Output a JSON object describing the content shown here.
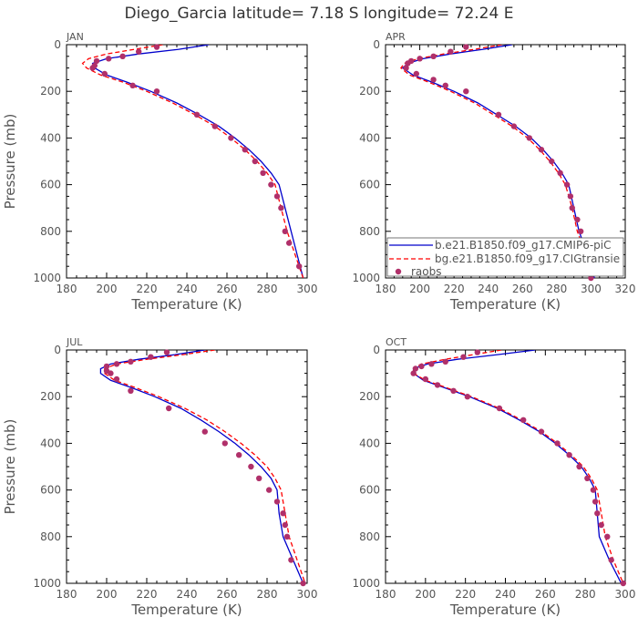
{
  "title": "Diego_Garcia  latitude= 7.18 S longitude= 72.24 E",
  "legend": {
    "entries": [
      {
        "label": "b.e21.B1850.f09_g17.CMIP6-piC",
        "color": "#0000cc",
        "style": "solid"
      },
      {
        "label": "bg.e21.B1850.f09_g17.CIGtransie",
        "color": "#ff0000",
        "style": "dashed"
      },
      {
        "label": "raobs",
        "color": "#b0306a",
        "style": "dot"
      }
    ]
  },
  "chart_data": [
    {
      "type": "line",
      "panel": "JAN",
      "xlabel": "Temperature (K)",
      "ylabel": "Pressure (mb)",
      "xlim": [
        180,
        300
      ],
      "ylim": [
        1000,
        0
      ],
      "xticks": [
        180,
        200,
        220,
        240,
        260,
        280,
        300
      ],
      "yticks": [
        0,
        200,
        400,
        600,
        800,
        1000
      ],
      "series": [
        {
          "name": "b.e21.B1850.f09_g17.CMIP6-piC",
          "color": "#0000cc",
          "style": "solid",
          "x": [
            251,
            236,
            216,
            200,
            193,
            194,
            200,
            210,
            222,
            235,
            246,
            256,
            264,
            271,
            277,
            282,
            286,
            289,
            292,
            295,
            298
          ],
          "y": [
            0,
            20,
            40,
            60,
            80,
            100,
            130,
            160,
            200,
            250,
            300,
            350,
            400,
            450,
            500,
            550,
            600,
            700,
            800,
            900,
            1000
          ]
        },
        {
          "name": "bg.e21.B1850.f09_g17.CIGtransie",
          "color": "#ff0000",
          "style": "dashed",
          "x": [
            228,
            214,
            200,
            191,
            188,
            190,
            197,
            208,
            220,
            233,
            244,
            254,
            262,
            269,
            275,
            280,
            284,
            287,
            290,
            294,
            298
          ],
          "y": [
            0,
            20,
            40,
            60,
            80,
            100,
            130,
            160,
            200,
            250,
            300,
            350,
            400,
            450,
            500,
            550,
            600,
            700,
            800,
            900,
            1000
          ]
        },
        {
          "name": "raobs",
          "color": "#b0306a",
          "style": "dot",
          "x": [
            225,
            216,
            208,
            201,
            195,
            194,
            193,
            199,
            213,
            225,
            245,
            254,
            262,
            269,
            274,
            278,
            282,
            285,
            287,
            289,
            291,
            296
          ],
          "y": [
            10,
            30,
            50,
            60,
            70,
            90,
            100,
            125,
            175,
            200,
            300,
            350,
            400,
            450,
            500,
            550,
            600,
            650,
            700,
            800,
            850,
            950
          ]
        }
      ]
    },
    {
      "type": "line",
      "panel": "APR",
      "xlabel": "Temperature (K)",
      "ylabel": "Pressure (mb)",
      "xlim": [
        180,
        320
      ],
      "ylim": [
        1000,
        0
      ],
      "xticks": [
        180,
        200,
        220,
        240,
        260,
        280,
        300,
        320
      ],
      "yticks": [
        0,
        200,
        400,
        600,
        800,
        1000
      ],
      "series": [
        {
          "name": "b.e21.B1850.f09_g17.CMIP6-piC",
          "color": "#0000cc",
          "style": "solid",
          "x": [
            254,
            237,
            218,
            202,
            193,
            190,
            196,
            207,
            220,
            234,
            245,
            256,
            265,
            272,
            278,
            283,
            287,
            290,
            293,
            298,
            302
          ],
          "y": [
            0,
            20,
            40,
            60,
            80,
            100,
            130,
            160,
            200,
            250,
            300,
            350,
            400,
            450,
            500,
            550,
            600,
            700,
            800,
            900,
            1000
          ]
        },
        {
          "name": "bg.e21.B1850.f09_g17.CIGtransie",
          "color": "#ff0000",
          "style": "dashed",
          "x": [
            248,
            232,
            214,
            199,
            191,
            189,
            194,
            205,
            218,
            232,
            243,
            254,
            263,
            270,
            276,
            281,
            285,
            289,
            292,
            297,
            301
          ],
          "y": [
            0,
            20,
            40,
            60,
            80,
            100,
            130,
            160,
            200,
            250,
            300,
            350,
            400,
            450,
            500,
            550,
            600,
            700,
            800,
            900,
            1000
          ]
        },
        {
          "name": "raobs",
          "color": "#b0306a",
          "style": "dot",
          "x": [
            227,
            218,
            208,
            200,
            195,
            193,
            192,
            198,
            208,
            215,
            227,
            246,
            255,
            264,
            271,
            277,
            282,
            286,
            288,
            289,
            292,
            294,
            296,
            298,
            300
          ],
          "y": [
            10,
            30,
            50,
            60,
            70,
            80,
            100,
            125,
            150,
            175,
            200,
            300,
            350,
            400,
            450,
            500,
            550,
            600,
            650,
            700,
            750,
            800,
            850,
            900,
            1000
          ]
        }
      ]
    },
    {
      "type": "line",
      "panel": "JUL",
      "xlabel": "Temperature (K)",
      "ylabel": "Pressure (mb)",
      "xlim": [
        180,
        300
      ],
      "ylim": [
        1000,
        0
      ],
      "xticks": [
        180,
        200,
        220,
        240,
        260,
        280,
        300
      ],
      "yticks": [
        0,
        200,
        400,
        600,
        800,
        1000
      ],
      "series": [
        {
          "name": "b.e21.B1850.f09_g17.CMIP6-piC",
          "color": "#0000cc",
          "style": "solid",
          "x": [
            249,
            234,
            216,
            202,
            197,
            197,
            202,
            212,
            224,
            237,
            247,
            256,
            264,
            271,
            277,
            282,
            285,
            286,
            288,
            293,
            298
          ],
          "y": [
            0,
            20,
            40,
            60,
            80,
            100,
            130,
            160,
            200,
            250,
            300,
            350,
            400,
            450,
            500,
            550,
            600,
            700,
            800,
            900,
            1000
          ]
        },
        {
          "name": "bg.e21.B1850.f09_g17.CIGtransie",
          "color": "#ff0000",
          "style": "dashed",
          "x": [
            254,
            238,
            220,
            205,
            199,
            199,
            204,
            214,
            226,
            239,
            250,
            259,
            267,
            274,
            280,
            284,
            287,
            289,
            291,
            295,
            299
          ],
          "y": [
            0,
            20,
            40,
            60,
            80,
            100,
            130,
            160,
            200,
            250,
            300,
            350,
            400,
            450,
            500,
            550,
            600,
            700,
            800,
            900,
            1000
          ]
        },
        {
          "name": "raobs",
          "color": "#b0306a",
          "style": "dot",
          "x": [
            230,
            222,
            212,
            205,
            200,
            200,
            202,
            205,
            212,
            231,
            249,
            259,
            266,
            272,
            276,
            281,
            285,
            288,
            289,
            290,
            292,
            298
          ],
          "y": [
            10,
            30,
            50,
            60,
            70,
            90,
            100,
            125,
            175,
            250,
            350,
            400,
            450,
            500,
            550,
            600,
            650,
            700,
            750,
            800,
            900,
            1000
          ]
        }
      ]
    },
    {
      "type": "line",
      "panel": "OCT",
      "xlabel": "Temperature (K)",
      "ylabel": "Pressure (mb)",
      "xlim": [
        180,
        300
      ],
      "ylim": [
        1000,
        0
      ],
      "xticks": [
        180,
        200,
        220,
        240,
        260,
        280,
        300
      ],
      "yticks": [
        0,
        200,
        400,
        600,
        800,
        1000
      ],
      "series": [
        {
          "name": "b.e21.B1850.f09_g17.CMIP6-piC",
          "color": "#0000cc",
          "style": "solid",
          "x": [
            255,
            236,
            216,
            201,
            194,
            194,
            199,
            209,
            222,
            236,
            247,
            257,
            265,
            272,
            278,
            282,
            285,
            286,
            287,
            292,
            298
          ],
          "y": [
            0,
            20,
            40,
            60,
            80,
            100,
            130,
            160,
            200,
            250,
            300,
            350,
            400,
            450,
            500,
            550,
            600,
            700,
            800,
            900,
            1000
          ]
        },
        {
          "name": "bg.e21.B1850.f09_g17.CIGtransie",
          "color": "#ff0000",
          "style": "dashed",
          "x": [
            238,
            224,
            210,
            198,
            194,
            194,
            200,
            210,
            223,
            237,
            248,
            258,
            266,
            273,
            279,
            283,
            286,
            288,
            290,
            294,
            299
          ],
          "y": [
            0,
            20,
            40,
            60,
            80,
            100,
            130,
            160,
            200,
            250,
            300,
            350,
            400,
            450,
            500,
            550,
            600,
            700,
            800,
            900,
            1000
          ]
        },
        {
          "name": "raobs",
          "color": "#b0306a",
          "style": "dot",
          "x": [
            226,
            219,
            210,
            203,
            198,
            195,
            194,
            200,
            206,
            214,
            221,
            237,
            249,
            258,
            266,
            272,
            277,
            281,
            284,
            285,
            286,
            288,
            291,
            293,
            299
          ],
          "y": [
            10,
            30,
            50,
            60,
            70,
            80,
            100,
            125,
            150,
            175,
            200,
            250,
            300,
            350,
            400,
            450,
            500,
            550,
            600,
            650,
            700,
            750,
            800,
            900,
            1000
          ]
        }
      ]
    }
  ]
}
